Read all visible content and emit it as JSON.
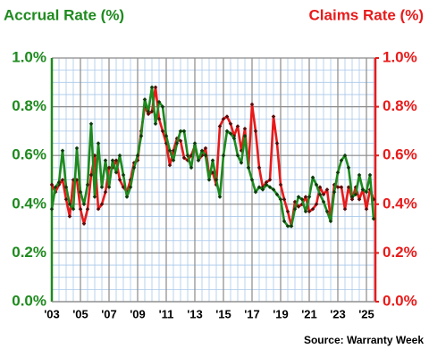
{
  "chart_data": {
    "type": "line",
    "y_axis_label": "Accrual Rate (%)",
    "y2_axis_label": "Claims Rate (%)",
    "source": "Source: Warranty Week",
    "x": [
      2003,
      2003.25,
      2003.5,
      2003.75,
      2004,
      2004.25,
      2004.5,
      2004.75,
      2005,
      2005.25,
      2005.5,
      2005.75,
      2006,
      2006.25,
      2006.5,
      2006.75,
      2007,
      2007.25,
      2007.5,
      2007.75,
      2008,
      2008.25,
      2008.5,
      2008.75,
      2009,
      2009.25,
      2009.5,
      2009.75,
      2010,
      2010.25,
      2010.5,
      2010.75,
      2011,
      2011.25,
      2011.5,
      2011.75,
      2012,
      2012.25,
      2012.5,
      2012.75,
      2013,
      2013.25,
      2013.5,
      2013.75,
      2014,
      2014.25,
      2014.5,
      2014.75,
      2015,
      2015.25,
      2015.5,
      2015.75,
      2016,
      2016.25,
      2016.5,
      2016.75,
      2017,
      2017.25,
      2017.5,
      2017.75,
      2018,
      2018.25,
      2018.5,
      2018.75,
      2019,
      2019.25,
      2019.5,
      2019.75,
      2020,
      2020.25,
      2020.5,
      2020.75,
      2021,
      2021.25,
      2021.5,
      2021.75,
      2022,
      2022.25,
      2022.5,
      2022.75,
      2023,
      2023.25,
      2023.5,
      2023.75,
      2024,
      2024.25,
      2024.5,
      2024.75,
      2025,
      2025.25,
      2025.5
    ],
    "series": [
      {
        "name": "Accrual Rate",
        "color": "#1e8a1e",
        "marker_color": "#0b3d0b",
        "values": [
          0.38,
          0.47,
          0.49,
          0.62,
          0.47,
          0.4,
          0.38,
          0.63,
          0.45,
          0.4,
          0.48,
          0.73,
          0.43,
          0.65,
          0.47,
          0.58,
          0.47,
          0.58,
          0.53,
          0.6,
          0.52,
          0.43,
          0.47,
          0.55,
          0.6,
          0.68,
          0.83,
          0.78,
          0.88,
          0.73,
          0.82,
          0.8,
          0.68,
          0.62,
          0.58,
          0.65,
          0.7,
          0.7,
          0.6,
          0.55,
          0.65,
          0.58,
          0.62,
          0.6,
          0.5,
          0.58,
          0.5,
          0.43,
          0.6,
          0.7,
          0.69,
          0.67,
          0.6,
          0.57,
          0.68,
          0.55,
          0.5,
          0.45,
          0.47,
          0.46,
          0.48,
          0.47,
          0.46,
          0.44,
          0.42,
          0.33,
          0.31,
          0.31,
          0.38,
          0.43,
          0.42,
          0.37,
          0.43,
          0.51,
          0.48,
          0.44,
          0.41,
          0.37,
          0.33,
          0.45,
          0.53,
          0.58,
          0.6,
          0.55,
          0.43,
          0.44,
          0.52,
          0.46,
          0.45,
          0.52,
          0.34
        ]
      },
      {
        "name": "Claims Rate",
        "color": "#e81a1a",
        "marker_color": "#5a0a0a",
        "axis": "y2",
        "values": [
          0.48,
          0.45,
          0.48,
          0.5,
          0.42,
          0.35,
          0.5,
          0.5,
          0.38,
          0.32,
          0.38,
          0.52,
          0.6,
          0.38,
          0.4,
          0.45,
          0.55,
          0.55,
          0.58,
          0.5,
          0.47,
          0.45,
          0.5,
          0.57,
          0.58,
          0.7,
          0.8,
          0.77,
          0.78,
          0.88,
          0.75,
          0.7,
          0.65,
          0.56,
          0.62,
          0.67,
          0.66,
          0.59,
          0.58,
          0.6,
          0.64,
          0.58,
          0.6,
          0.63,
          0.52,
          0.53,
          0.48,
          0.72,
          0.75,
          0.76,
          0.73,
          0.68,
          0.72,
          0.62,
          0.71,
          0.55,
          0.81,
          0.7,
          0.55,
          0.47,
          0.49,
          0.5,
          0.76,
          0.65,
          0.48,
          0.42,
          0.37,
          0.31,
          0.41,
          0.39,
          0.4,
          0.43,
          0.37,
          0.38,
          0.4,
          0.47,
          0.44,
          0.46,
          0.34,
          0.48,
          0.47,
          0.47,
          0.38,
          0.47,
          0.42,
          0.47,
          0.42,
          0.46,
          0.38,
          0.46,
          0.42
        ]
      }
    ],
    "xlim": [
      2003,
      2025.625
    ],
    "xticks": [
      {
        "value": 2003,
        "label": "'03"
      },
      {
        "value": 2005,
        "label": "'05"
      },
      {
        "value": 2007,
        "label": "'07"
      },
      {
        "value": 2009,
        "label": "'09"
      },
      {
        "value": 2011,
        "label": "'11"
      },
      {
        "value": 2013,
        "label": "'13"
      },
      {
        "value": 2015,
        "label": "'15"
      },
      {
        "value": 2017,
        "label": "'17"
      },
      {
        "value": 2019,
        "label": "'19"
      },
      {
        "value": 2021,
        "label": "'21"
      },
      {
        "value": 2023,
        "label": "'23"
      },
      {
        "value": 2025,
        "label": "'25"
      }
    ],
    "ylim": [
      0,
      1.0
    ],
    "yticks": [
      {
        "value": 0,
        "label": "0.0%"
      },
      {
        "value": 0.2,
        "label": "0.2%"
      },
      {
        "value": 0.4,
        "label": "0.4%"
      },
      {
        "value": 0.6,
        "label": "0.6%"
      },
      {
        "value": 0.8,
        "label": "0.8%"
      },
      {
        "value": 1.0,
        "label": "1.0%"
      }
    ],
    "y2lim": [
      0,
      1.0
    ],
    "y2ticks": [
      {
        "value": 0,
        "label": "0.0%"
      },
      {
        "value": 0.2,
        "label": "0.2%"
      },
      {
        "value": 0.4,
        "label": "0.4%"
      },
      {
        "value": 0.6,
        "label": "0.6%"
      },
      {
        "value": 0.8,
        "label": "0.8%"
      },
      {
        "value": 1.0,
        "label": "1.0%"
      }
    ],
    "grid": true
  }
}
